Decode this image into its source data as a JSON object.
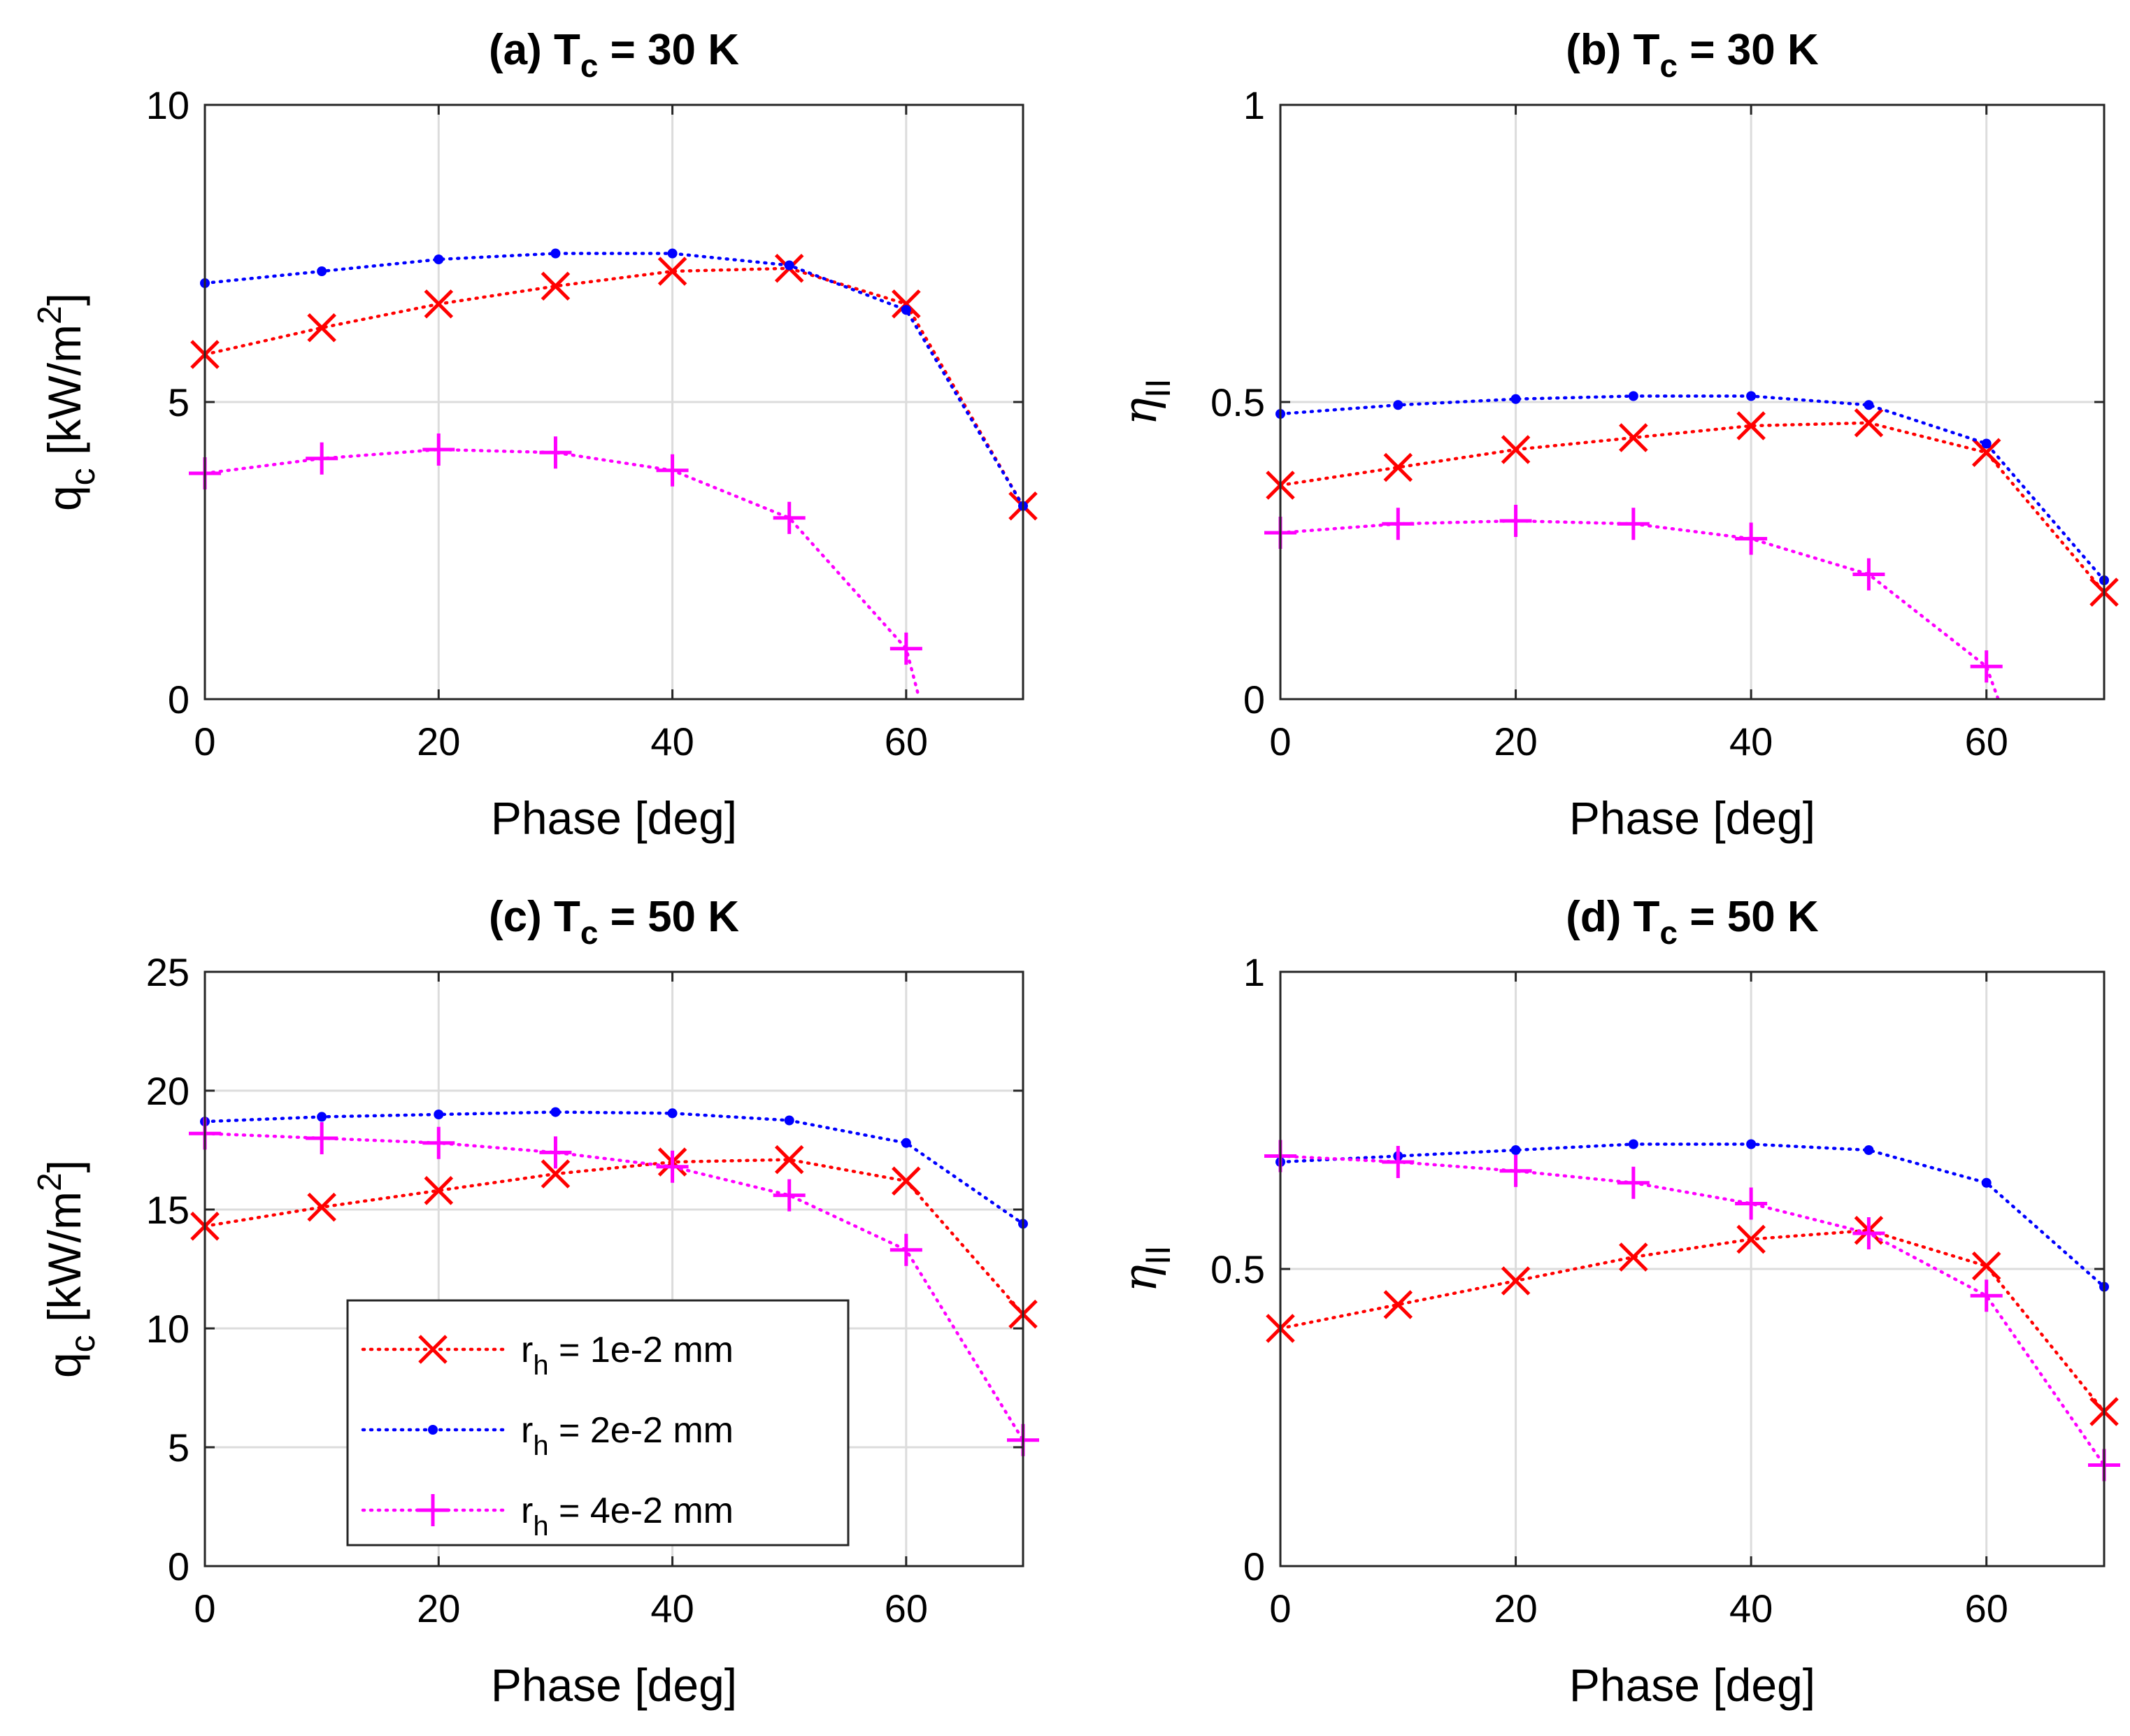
{
  "legend": {
    "series": [
      {
        "symbol": "r",
        "sub": "h",
        "text": " = 1e-2 mm",
        "color": "#ff0000",
        "marker": "x"
      },
      {
        "symbol": "r",
        "sub": "h",
        "text": " = 2e-2 mm",
        "color": "#0000ff",
        "marker": "dot"
      },
      {
        "symbol": "r",
        "sub": "h",
        "text": " = 4e-2 mm",
        "color": "#ff00ff",
        "marker": "plus"
      }
    ]
  },
  "chart_data": [
    {
      "type": "line",
      "title": "(a) T",
      "title_sub": "c",
      "title_rest": " = 30 K",
      "xlabel": "Phase [deg]",
      "ylabel": "q",
      "ylabel_sub": "c",
      "ylabel_rest": " [kW/m",
      "ylabel_sup": "2",
      "ylabel_end": "]",
      "xlim": [
        0,
        70
      ],
      "ylim": [
        0,
        10
      ],
      "xticks": [
        "0",
        "20",
        "40",
        "60"
      ],
      "yticks": [
        "0",
        "5",
        "10"
      ],
      "grid": true,
      "series": [
        {
          "name": "r_h = 1e-2 mm",
          "x": [
            0,
            10,
            20,
            30,
            40,
            50,
            60,
            70
          ],
          "values": [
            5.8,
            6.25,
            6.65,
            6.95,
            7.2,
            7.25,
            6.65,
            3.25
          ]
        },
        {
          "name": "r_h = 2e-2 mm",
          "x": [
            0,
            10,
            20,
            30,
            40,
            50,
            60,
            70
          ],
          "values": [
            7.0,
            7.2,
            7.4,
            7.5,
            7.5,
            7.3,
            6.55,
            3.25
          ]
        },
        {
          "name": "r_h = 4e-2 mm",
          "x": [
            0,
            10,
            20,
            30,
            40,
            50,
            60,
            61
          ],
          "values": [
            3.8,
            4.05,
            4.2,
            4.15,
            3.85,
            3.05,
            0.85,
            0.1
          ]
        }
      ]
    },
    {
      "type": "line",
      "title": "(b) T",
      "title_sub": "c",
      "title_rest": " = 30 K",
      "xlabel": "Phase [deg]",
      "ylabel": "η",
      "ylabel_sub": "II",
      "ylabel_rest": "",
      "ylabel_sup": "",
      "ylabel_end": "",
      "xlim": [
        0,
        70
      ],
      "ylim": [
        0,
        1
      ],
      "xticks": [
        "0",
        "20",
        "40",
        "60"
      ],
      "yticks": [
        "0",
        "0.5",
        "1"
      ],
      "grid": true,
      "series": [
        {
          "name": "r_h = 1e-2 mm",
          "x": [
            0,
            10,
            20,
            30,
            40,
            50,
            60,
            70
          ],
          "values": [
            0.36,
            0.39,
            0.42,
            0.44,
            0.46,
            0.465,
            0.415,
            0.18
          ]
        },
        {
          "name": "r_h = 2e-2 mm",
          "x": [
            0,
            10,
            20,
            30,
            40,
            50,
            60,
            70
          ],
          "values": [
            0.48,
            0.495,
            0.505,
            0.51,
            0.51,
            0.495,
            0.43,
            0.2
          ]
        },
        {
          "name": "r_h = 4e-2 mm",
          "x": [
            0,
            10,
            20,
            30,
            40,
            50,
            60,
            61
          ],
          "values": [
            0.28,
            0.295,
            0.3,
            0.295,
            0.27,
            0.21,
            0.055,
            0.0
          ]
        }
      ]
    },
    {
      "type": "line",
      "title": "(c) T",
      "title_sub": "c",
      "title_rest": " = 50 K",
      "xlabel": "Phase [deg]",
      "ylabel": "q",
      "ylabel_sub": "c",
      "ylabel_rest": " [kW/m",
      "ylabel_sup": "2",
      "ylabel_end": "]",
      "xlim": [
        0,
        70
      ],
      "ylim": [
        0,
        25
      ],
      "xticks": [
        "0",
        "20",
        "40",
        "60"
      ],
      "yticks": [
        "0",
        "5",
        "10",
        "15",
        "20",
        "25"
      ],
      "grid": true,
      "series": [
        {
          "name": "r_h = 1e-2 mm",
          "x": [
            0,
            10,
            20,
            30,
            40,
            50,
            60,
            70
          ],
          "values": [
            14.3,
            15.1,
            15.8,
            16.5,
            17.0,
            17.1,
            16.2,
            10.6
          ]
        },
        {
          "name": "r_h = 2e-2 mm",
          "x": [
            0,
            10,
            20,
            30,
            40,
            50,
            60,
            70
          ],
          "values": [
            18.7,
            18.9,
            19.0,
            19.1,
            19.05,
            18.75,
            17.8,
            14.4
          ]
        },
        {
          "name": "r_h = 4e-2 mm",
          "x": [
            0,
            10,
            20,
            30,
            40,
            50,
            60,
            70
          ],
          "values": [
            18.2,
            18.0,
            17.8,
            17.4,
            16.8,
            15.6,
            13.3,
            5.3
          ]
        }
      ]
    },
    {
      "type": "line",
      "title": "(d) T",
      "title_sub": "c",
      "title_rest": " = 50 K",
      "xlabel": "Phase [deg]",
      "ylabel": "η",
      "ylabel_sub": "II",
      "ylabel_rest": "",
      "ylabel_sup": "",
      "ylabel_end": "",
      "xlim": [
        0,
        70
      ],
      "ylim": [
        0,
        1
      ],
      "xticks": [
        "0",
        "20",
        "40",
        "60"
      ],
      "yticks": [
        "0",
        "0.5",
        "1"
      ],
      "grid": true,
      "series": [
        {
          "name": "r_h = 1e-2 mm",
          "x": [
            0,
            10,
            20,
            30,
            40,
            50,
            60,
            70
          ],
          "values": [
            0.4,
            0.44,
            0.48,
            0.52,
            0.55,
            0.565,
            0.505,
            0.26
          ]
        },
        {
          "name": "r_h = 2e-2 mm",
          "x": [
            0,
            10,
            20,
            30,
            40,
            50,
            60,
            70
          ],
          "values": [
            0.68,
            0.69,
            0.7,
            0.71,
            0.71,
            0.7,
            0.645,
            0.47
          ]
        },
        {
          "name": "r_h = 4e-2 mm",
          "x": [
            0,
            10,
            20,
            30,
            40,
            50,
            60,
            70
          ],
          "values": [
            0.69,
            0.68,
            0.665,
            0.645,
            0.61,
            0.56,
            0.455,
            0.17
          ]
        }
      ]
    }
  ]
}
